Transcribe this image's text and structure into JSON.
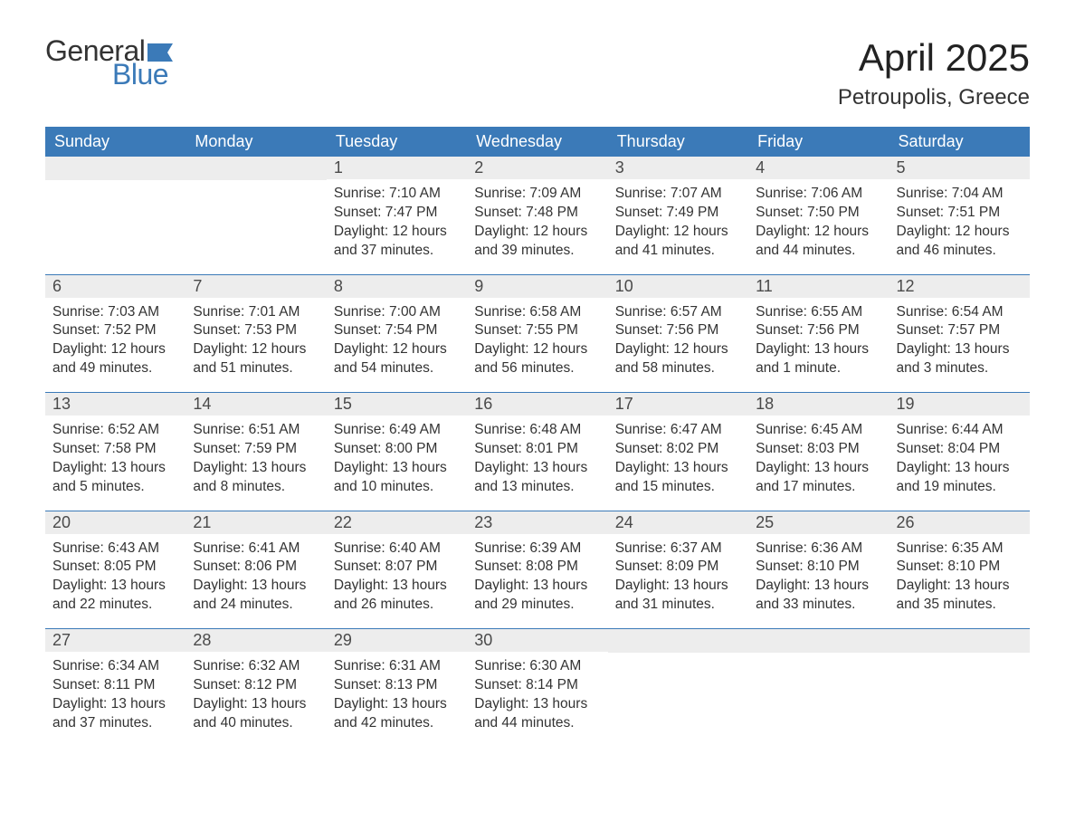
{
  "logo": {
    "general": "General",
    "blue": "Blue",
    "flag_color": "#3b7ab8"
  },
  "title": "April 2025",
  "location": "Petroupolis, Greece",
  "colors": {
    "header_bg": "#3b7ab8",
    "header_text": "#ffffff",
    "daynum_bg": "#ededed",
    "text": "#333333",
    "rule": "#3b7ab8"
  },
  "weekdays": [
    "Sunday",
    "Monday",
    "Tuesday",
    "Wednesday",
    "Thursday",
    "Friday",
    "Saturday"
  ],
  "weeks": [
    [
      null,
      null,
      {
        "d": "1",
        "sr": "Sunrise: 7:10 AM",
        "ss": "Sunset: 7:47 PM",
        "dl1": "Daylight: 12 hours",
        "dl2": "and 37 minutes."
      },
      {
        "d": "2",
        "sr": "Sunrise: 7:09 AM",
        "ss": "Sunset: 7:48 PM",
        "dl1": "Daylight: 12 hours",
        "dl2": "and 39 minutes."
      },
      {
        "d": "3",
        "sr": "Sunrise: 7:07 AM",
        "ss": "Sunset: 7:49 PM",
        "dl1": "Daylight: 12 hours",
        "dl2": "and 41 minutes."
      },
      {
        "d": "4",
        "sr": "Sunrise: 7:06 AM",
        "ss": "Sunset: 7:50 PM",
        "dl1": "Daylight: 12 hours",
        "dl2": "and 44 minutes."
      },
      {
        "d": "5",
        "sr": "Sunrise: 7:04 AM",
        "ss": "Sunset: 7:51 PM",
        "dl1": "Daylight: 12 hours",
        "dl2": "and 46 minutes."
      }
    ],
    [
      {
        "d": "6",
        "sr": "Sunrise: 7:03 AM",
        "ss": "Sunset: 7:52 PM",
        "dl1": "Daylight: 12 hours",
        "dl2": "and 49 minutes."
      },
      {
        "d": "7",
        "sr": "Sunrise: 7:01 AM",
        "ss": "Sunset: 7:53 PM",
        "dl1": "Daylight: 12 hours",
        "dl2": "and 51 minutes."
      },
      {
        "d": "8",
        "sr": "Sunrise: 7:00 AM",
        "ss": "Sunset: 7:54 PM",
        "dl1": "Daylight: 12 hours",
        "dl2": "and 54 minutes."
      },
      {
        "d": "9",
        "sr": "Sunrise: 6:58 AM",
        "ss": "Sunset: 7:55 PM",
        "dl1": "Daylight: 12 hours",
        "dl2": "and 56 minutes."
      },
      {
        "d": "10",
        "sr": "Sunrise: 6:57 AM",
        "ss": "Sunset: 7:56 PM",
        "dl1": "Daylight: 12 hours",
        "dl2": "and 58 minutes."
      },
      {
        "d": "11",
        "sr": "Sunrise: 6:55 AM",
        "ss": "Sunset: 7:56 PM",
        "dl1": "Daylight: 13 hours",
        "dl2": "and 1 minute."
      },
      {
        "d": "12",
        "sr": "Sunrise: 6:54 AM",
        "ss": "Sunset: 7:57 PM",
        "dl1": "Daylight: 13 hours",
        "dl2": "and 3 minutes."
      }
    ],
    [
      {
        "d": "13",
        "sr": "Sunrise: 6:52 AM",
        "ss": "Sunset: 7:58 PM",
        "dl1": "Daylight: 13 hours",
        "dl2": "and 5 minutes."
      },
      {
        "d": "14",
        "sr": "Sunrise: 6:51 AM",
        "ss": "Sunset: 7:59 PM",
        "dl1": "Daylight: 13 hours",
        "dl2": "and 8 minutes."
      },
      {
        "d": "15",
        "sr": "Sunrise: 6:49 AM",
        "ss": "Sunset: 8:00 PM",
        "dl1": "Daylight: 13 hours",
        "dl2": "and 10 minutes."
      },
      {
        "d": "16",
        "sr": "Sunrise: 6:48 AM",
        "ss": "Sunset: 8:01 PM",
        "dl1": "Daylight: 13 hours",
        "dl2": "and 13 minutes."
      },
      {
        "d": "17",
        "sr": "Sunrise: 6:47 AM",
        "ss": "Sunset: 8:02 PM",
        "dl1": "Daylight: 13 hours",
        "dl2": "and 15 minutes."
      },
      {
        "d": "18",
        "sr": "Sunrise: 6:45 AM",
        "ss": "Sunset: 8:03 PM",
        "dl1": "Daylight: 13 hours",
        "dl2": "and 17 minutes."
      },
      {
        "d": "19",
        "sr": "Sunrise: 6:44 AM",
        "ss": "Sunset: 8:04 PM",
        "dl1": "Daylight: 13 hours",
        "dl2": "and 19 minutes."
      }
    ],
    [
      {
        "d": "20",
        "sr": "Sunrise: 6:43 AM",
        "ss": "Sunset: 8:05 PM",
        "dl1": "Daylight: 13 hours",
        "dl2": "and 22 minutes."
      },
      {
        "d": "21",
        "sr": "Sunrise: 6:41 AM",
        "ss": "Sunset: 8:06 PM",
        "dl1": "Daylight: 13 hours",
        "dl2": "and 24 minutes."
      },
      {
        "d": "22",
        "sr": "Sunrise: 6:40 AM",
        "ss": "Sunset: 8:07 PM",
        "dl1": "Daylight: 13 hours",
        "dl2": "and 26 minutes."
      },
      {
        "d": "23",
        "sr": "Sunrise: 6:39 AM",
        "ss": "Sunset: 8:08 PM",
        "dl1": "Daylight: 13 hours",
        "dl2": "and 29 minutes."
      },
      {
        "d": "24",
        "sr": "Sunrise: 6:37 AM",
        "ss": "Sunset: 8:09 PM",
        "dl1": "Daylight: 13 hours",
        "dl2": "and 31 minutes."
      },
      {
        "d": "25",
        "sr": "Sunrise: 6:36 AM",
        "ss": "Sunset: 8:10 PM",
        "dl1": "Daylight: 13 hours",
        "dl2": "and 33 minutes."
      },
      {
        "d": "26",
        "sr": "Sunrise: 6:35 AM",
        "ss": "Sunset: 8:10 PM",
        "dl1": "Daylight: 13 hours",
        "dl2": "and 35 minutes."
      }
    ],
    [
      {
        "d": "27",
        "sr": "Sunrise: 6:34 AM",
        "ss": "Sunset: 8:11 PM",
        "dl1": "Daylight: 13 hours",
        "dl2": "and 37 minutes."
      },
      {
        "d": "28",
        "sr": "Sunrise: 6:32 AM",
        "ss": "Sunset: 8:12 PM",
        "dl1": "Daylight: 13 hours",
        "dl2": "and 40 minutes."
      },
      {
        "d": "29",
        "sr": "Sunrise: 6:31 AM",
        "ss": "Sunset: 8:13 PM",
        "dl1": "Daylight: 13 hours",
        "dl2": "and 42 minutes."
      },
      {
        "d": "30",
        "sr": "Sunrise: 6:30 AM",
        "ss": "Sunset: 8:14 PM",
        "dl1": "Daylight: 13 hours",
        "dl2": "and 44 minutes."
      },
      null,
      null,
      null
    ]
  ]
}
